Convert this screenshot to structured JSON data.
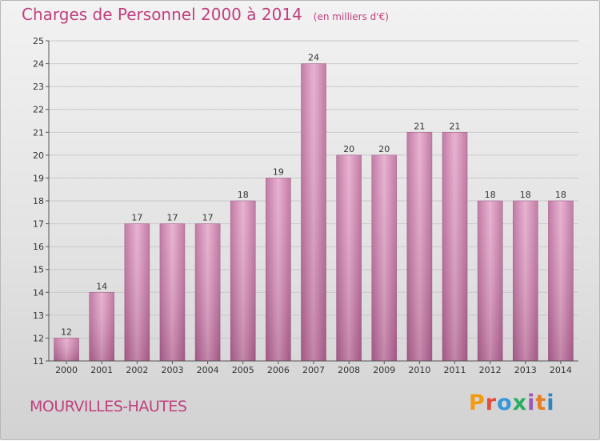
{
  "header": {
    "title": "Charges de Personnel 2000 à 2014",
    "subtitle": "(en milliers d'€)"
  },
  "footer": {
    "commune": "MOURVILLES-HAUTES",
    "logo_text": "Proxiti"
  },
  "colors": {
    "title": "#c0407f",
    "bar": "#d690b8",
    "logo": [
      "#f39c12",
      "#e74c3c",
      "#3498db",
      "#27ae60",
      "#9b59b6",
      "#e67e22",
      "#2e86c1"
    ]
  },
  "chart_data": {
    "type": "bar",
    "title": "Charges de Personnel 2000 à 2014",
    "subtitle": "(en milliers d'€)",
    "xlabel": "",
    "ylabel": "",
    "categories": [
      "2000",
      "2001",
      "2002",
      "2003",
      "2004",
      "2005",
      "2006",
      "2007",
      "2008",
      "2009",
      "2010",
      "2011",
      "2012",
      "2013",
      "2014"
    ],
    "values": [
      12,
      14,
      17,
      17,
      17,
      18,
      19,
      24,
      20,
      20,
      21,
      21,
      18,
      18,
      18
    ],
    "ylim": [
      11,
      25
    ],
    "yticks": [
      11,
      12,
      13,
      14,
      15,
      16,
      17,
      18,
      19,
      20,
      21,
      22,
      23,
      24,
      25
    ],
    "grid": true,
    "data_labels": true
  }
}
